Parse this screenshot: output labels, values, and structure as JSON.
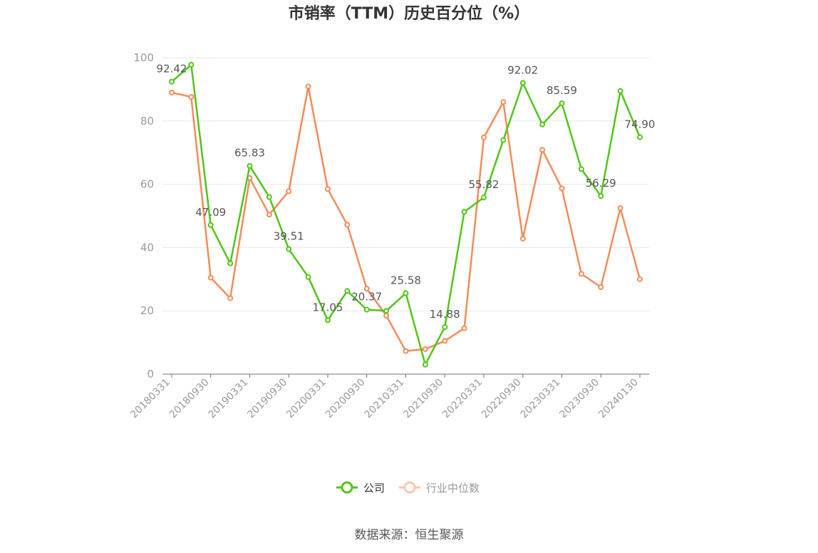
{
  "chart_data": {
    "type": "line",
    "title": "市销率（TTM）历史百分位（%）",
    "ylim": [
      0,
      100
    ],
    "yticks": [
      0,
      20,
      40,
      60,
      80,
      100
    ],
    "x": [
      "20180331",
      "20180630",
      "20180930",
      "20181231",
      "20190331",
      "20190630",
      "20190930",
      "20191231",
      "20200331",
      "20200630",
      "20200930",
      "20201231",
      "20210331",
      "20210630",
      "20210930",
      "20211231",
      "20220331",
      "20220630",
      "20220930",
      "20221231",
      "20230331",
      "20230630",
      "20230930",
      "20231231",
      "20240130"
    ],
    "xtick_labels": [
      "20180331",
      "20180930",
      "20190331",
      "20190930",
      "20200331",
      "20200930",
      "20210331",
      "20210930",
      "20220331",
      "20220930",
      "20230331",
      "20230930",
      "20240130"
    ],
    "grid": true,
    "legend_position": "bottom",
    "series": [
      {
        "name": "公司",
        "color": "#52c41a",
        "values": [
          92.42,
          97.8,
          47.09,
          35.0,
          65.83,
          56.0,
          39.51,
          30.7,
          17.05,
          26.3,
          20.37,
          20.0,
          25.58,
          3.0,
          14.88,
          51.3,
          55.82,
          74.0,
          92.02,
          78.9,
          85.59,
          64.8,
          56.29,
          89.5,
          74.9
        ],
        "labels": {
          "0": "92.42",
          "2": "47.09",
          "4": "65.83",
          "6": "39.51",
          "8": "17.05",
          "10": "20.37",
          "12": "25.58",
          "14": "14.88",
          "16": "55.82",
          "18": "92.02",
          "20": "85.59",
          "22": "56.29",
          "24": "74.90"
        }
      },
      {
        "name": "行业中位数",
        "color": "#f28c5a",
        "values": [
          89.0,
          87.6,
          30.5,
          24.0,
          62.0,
          50.4,
          57.8,
          90.9,
          58.5,
          47.2,
          27.0,
          18.5,
          7.3,
          7.9,
          10.5,
          14.5,
          74.8,
          86.0,
          42.8,
          70.9,
          58.7,
          31.7,
          27.5,
          52.5,
          30.0
        ]
      }
    ]
  },
  "source_text": "数据来源：恒生聚源"
}
